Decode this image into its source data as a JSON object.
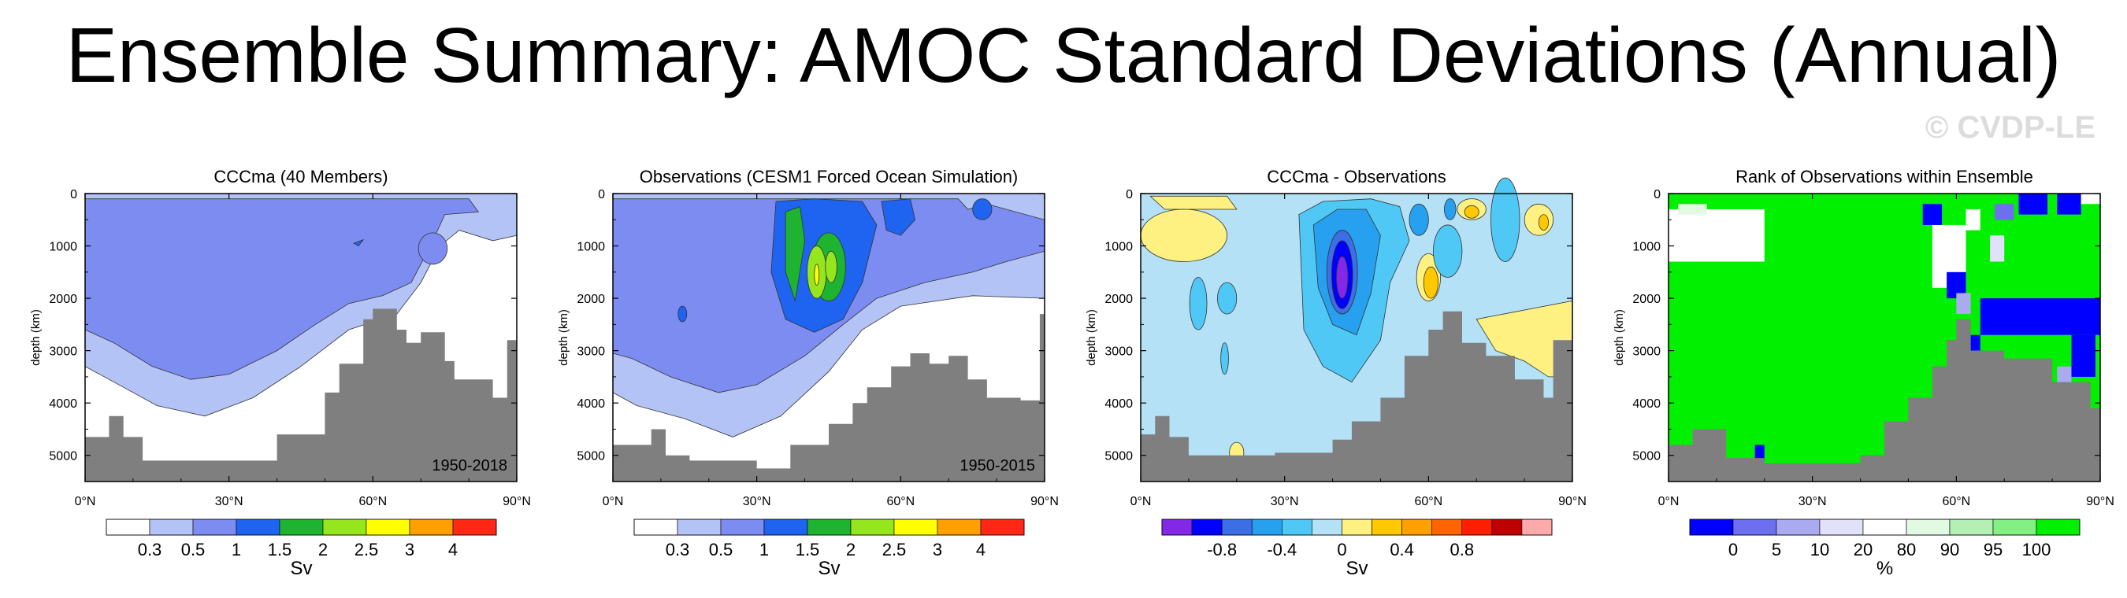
{
  "title": "Ensemble Summary: AMOC Standard Deviations (Annual)",
  "watermark": "© CVDP-LE",
  "chart_data": [
    {
      "type": "heatmap",
      "title": "CCCma (40 Members)",
      "xlabel": "",
      "ylabel": "depth (km)",
      "x_ticks": [
        "0°N",
        "30°N",
        "60°N",
        "90°N"
      ],
      "y_ticks": [
        "0",
        "1000",
        "2000",
        "3000",
        "4000",
        "5000"
      ],
      "xlim": [
        0,
        90
      ],
      "ylim": [
        5500,
        0
      ],
      "annotation": "1950-2018",
      "colorbar": {
        "labels": [
          "0.3",
          "0.5",
          "1",
          "1.5",
          "2",
          "2.5",
          "3",
          "4"
        ],
        "units": "Sv",
        "colors": [
          "#ffffff",
          "#b4c3f5",
          "#7d8cf0",
          "#1e64f0",
          "#1eb432",
          "#96e61e",
          "#ffff00",
          "#ffa000",
          "#ff2814"
        ]
      },
      "levels": [
        {
          "value": 0.3,
          "color": "#b4c3f5"
        },
        {
          "value": 0.5,
          "color": "#7d8cf0"
        }
      ]
    },
    {
      "type": "heatmap",
      "title": "Observations (CESM1 Forced Ocean Simulation)",
      "xlabel": "",
      "ylabel": "depth (km)",
      "x_ticks": [
        "0°N",
        "30°N",
        "60°N",
        "90°N"
      ],
      "y_ticks": [
        "0",
        "1000",
        "2000",
        "3000",
        "4000",
        "5000"
      ],
      "xlim": [
        0,
        90
      ],
      "ylim": [
        5500,
        0
      ],
      "annotation": "1950-2015",
      "colorbar": {
        "labels": [
          "0.3",
          "0.5",
          "1",
          "1.5",
          "2",
          "2.5",
          "3",
          "4"
        ],
        "units": "Sv",
        "colors": [
          "#ffffff",
          "#b4c3f5",
          "#7d8cf0",
          "#1e64f0",
          "#1eb432",
          "#96e61e",
          "#ffff00",
          "#ffa000",
          "#ff2814"
        ]
      },
      "levels": [
        {
          "value": 0.3,
          "color": "#b4c3f5"
        },
        {
          "value": 0.5,
          "color": "#7d8cf0"
        },
        {
          "value": 1,
          "color": "#1e64f0"
        },
        {
          "value": 1.5,
          "color": "#1eb432"
        },
        {
          "value": 2,
          "color": "#96e61e"
        },
        {
          "value": 2.5,
          "color": "#ffff00"
        }
      ]
    },
    {
      "type": "heatmap",
      "title": "CCCma - Observations",
      "xlabel": "",
      "ylabel": "depth (km)",
      "x_ticks": [
        "0°N",
        "30°N",
        "60°N",
        "90°N"
      ],
      "y_ticks": [
        "0",
        "1000",
        "2000",
        "3000",
        "4000",
        "5000"
      ],
      "xlim": [
        0,
        90
      ],
      "ylim": [
        5500,
        0
      ],
      "colorbar": {
        "labels": [
          "-0.8",
          "-0.4",
          "0",
          "0.4",
          "0.8"
        ],
        "units": "Sv",
        "colors": [
          "#8228e6",
          "#0000ff",
          "#3c6ee6",
          "#28a0f0",
          "#50c8f5",
          "#b4e1f5",
          "#fff082",
          "#ffc800",
          "#ffa000",
          "#ff6400",
          "#ff1e00",
          "#be0000",
          "#ffaaaa"
        ]
      },
      "levels": [
        {
          "value": -0.1,
          "color": "#b4e1f5"
        },
        {
          "value": -0.2,
          "color": "#50c8f5"
        },
        {
          "value": -0.4,
          "color": "#28a0f0"
        },
        {
          "value": -0.6,
          "color": "#3c6ee6"
        },
        {
          "value": -0.8,
          "color": "#0000ff"
        },
        {
          "value": -1.0,
          "color": "#8228e6"
        },
        {
          "value": 0.1,
          "color": "#fff082"
        },
        {
          "value": 0.2,
          "color": "#ffc800"
        }
      ]
    },
    {
      "type": "heatmap",
      "title": "Rank of Observations within Ensemble",
      "xlabel": "",
      "ylabel": "depth (km)",
      "x_ticks": [
        "0°N",
        "30°N",
        "60°N",
        "90°N"
      ],
      "y_ticks": [
        "0",
        "1000",
        "2000",
        "3000",
        "4000",
        "5000"
      ],
      "xlim": [
        0,
        90
      ],
      "ylim": [
        5500,
        0
      ],
      "colorbar": {
        "labels": [
          "0",
          "5",
          "10",
          "20",
          "80",
          "90",
          "95",
          "100"
        ],
        "units": "%",
        "colors": [
          "#0000ff",
          "#6e6ef0",
          "#aaaaf0",
          "#e1e1fa",
          "#ffffff",
          "#e1fae1",
          "#b4f0b4",
          "#82f082",
          "#00f000"
        ]
      },
      "levels": [
        {
          "value": 100,
          "color": "#00f000"
        },
        {
          "value": 0,
          "color": "#0000ff"
        },
        {
          "value": 50,
          "color": "#ffffff"
        }
      ]
    }
  ]
}
